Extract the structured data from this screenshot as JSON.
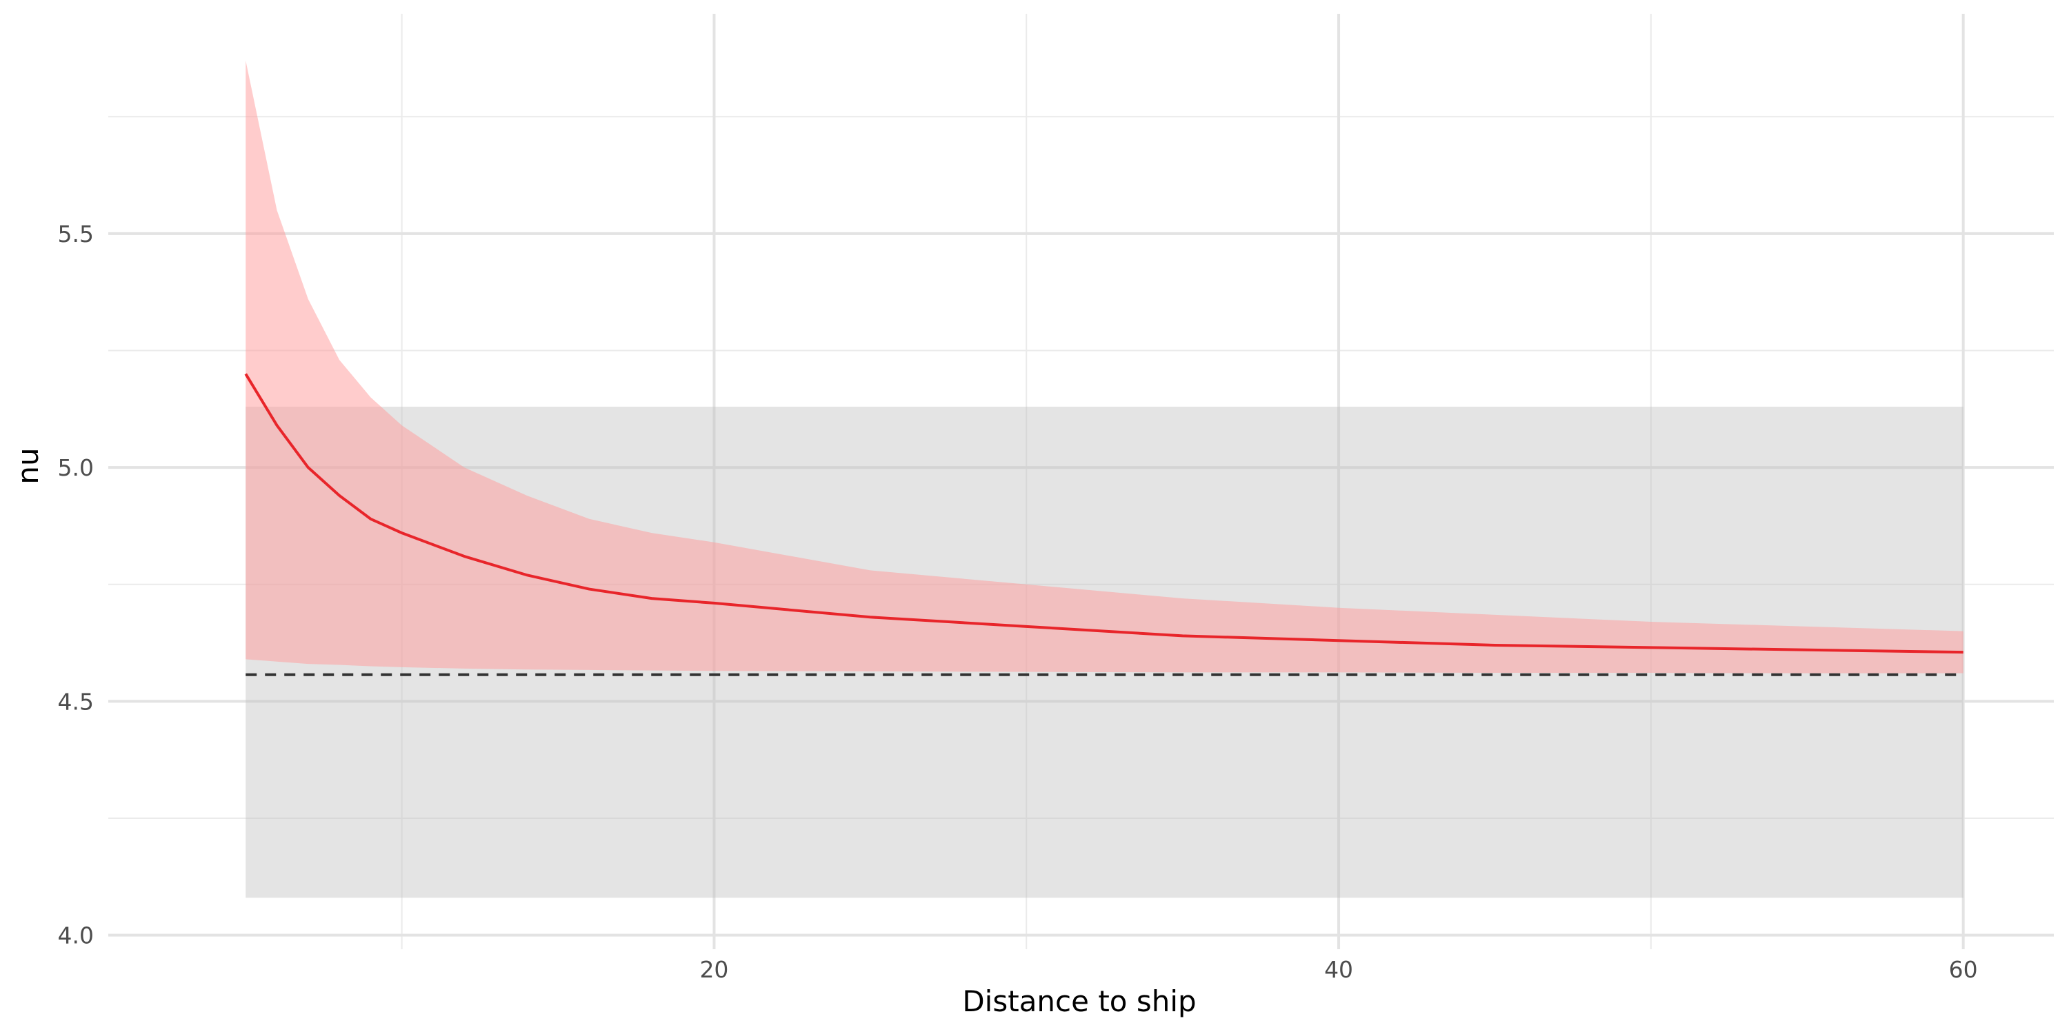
{
  "chart_data": {
    "type": "line",
    "title": "",
    "xlabel": "Distance to ship",
    "ylabel": "nu",
    "xlim": [
      0.6,
      62.9
    ],
    "ylim": [
      3.97,
      5.97
    ],
    "grid": true,
    "legend": "none",
    "x_ticks": [
      20,
      40,
      60
    ],
    "x_tick_labels": [
      "20",
      "40",
      "60"
    ],
    "x_minor_ticks": [
      10,
      30,
      50
    ],
    "y_ticks": [
      4.0,
      4.5,
      5.0,
      5.5
    ],
    "y_tick_labels": [
      "4.0",
      "4.5",
      "5.0",
      "5.5"
    ],
    "y_minor_ticks": [
      4.25,
      4.75,
      5.25,
      5.75
    ],
    "baseline_band": {
      "x": [
        5,
        60
      ],
      "y_low": 4.08,
      "y_high": 5.13,
      "color": "#bfbfbf"
    },
    "reference_line": {
      "y": 4.557,
      "x": [
        5,
        60
      ],
      "style": "dashed",
      "color": "#333333"
    },
    "series": [
      {
        "color": "#e8252a",
        "band_color": "#ff9a9a",
        "x": [
          5,
          6,
          7,
          8,
          9,
          10,
          12,
          14,
          16,
          18,
          20,
          25,
          30,
          35,
          40,
          45,
          50,
          55,
          60
        ],
        "y": [
          5.2,
          5.09,
          5.0,
          4.94,
          4.89,
          4.86,
          4.81,
          4.77,
          4.74,
          4.72,
          4.71,
          4.68,
          4.66,
          4.64,
          4.63,
          4.62,
          4.615,
          4.61,
          4.605
        ],
        "lower": [
          4.59,
          4.585,
          4.58,
          4.578,
          4.575,
          4.573,
          4.57,
          4.568,
          4.567,
          4.566,
          4.565,
          4.564,
          4.563,
          4.562,
          4.562,
          4.561,
          4.561,
          4.56,
          4.56
        ],
        "upper": [
          5.87,
          5.55,
          5.36,
          5.23,
          5.15,
          5.09,
          5.0,
          4.94,
          4.89,
          4.86,
          4.84,
          4.78,
          4.75,
          4.72,
          4.7,
          4.685,
          4.67,
          4.66,
          4.65
        ]
      }
    ]
  }
}
